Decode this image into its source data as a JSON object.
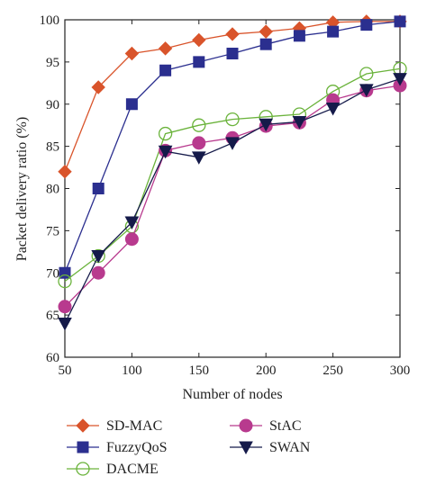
{
  "chart_data": {
    "type": "line",
    "title": "",
    "xlabel": "Number of nodes",
    "ylabel": "Packet delivery ratio (%)",
    "x": [
      50,
      75,
      100,
      125,
      150,
      175,
      200,
      225,
      250,
      275,
      300
    ],
    "xlim": [
      50,
      300
    ],
    "ylim": [
      60,
      100
    ],
    "xticks": [
      50,
      100,
      150,
      200,
      250,
      300
    ],
    "yticks": [
      60,
      65,
      70,
      75,
      80,
      85,
      90,
      95,
      100
    ],
    "grid": false,
    "legend_position": "bottom",
    "series": [
      {
        "name": "SD-MAC",
        "color": "#d9542b",
        "marker": "diamond",
        "values": [
          82,
          92,
          96,
          96.6,
          97.6,
          98.3,
          98.6,
          99.0,
          99.7,
          99.8,
          99.8
        ]
      },
      {
        "name": "FuzzyQoS",
        "color": "#2b2f8f",
        "marker": "square",
        "values": [
          70,
          80,
          90,
          94,
          95,
          96,
          97.1,
          98.1,
          98.6,
          99.4,
          99.8
        ]
      },
      {
        "name": "DACME",
        "color": "#6ab33b",
        "marker": "circle-open",
        "values": [
          69,
          72,
          75.5,
          86.5,
          87.5,
          88.2,
          88.5,
          88.8,
          91.5,
          93.6,
          94.2
        ]
      },
      {
        "name": "StAC",
        "color": "#b83a8e",
        "marker": "circle",
        "values": [
          66,
          70,
          74,
          84.5,
          85.4,
          86,
          87.4,
          87.8,
          90.5,
          91.6,
          92.2
        ]
      },
      {
        "name": "SWAN",
        "color": "#151a4a",
        "marker": "triangle-down",
        "values": [
          64,
          72,
          76,
          84.4,
          83.7,
          85.4,
          87.6,
          87.9,
          89.5,
          91.7,
          93
        ]
      }
    ]
  }
}
